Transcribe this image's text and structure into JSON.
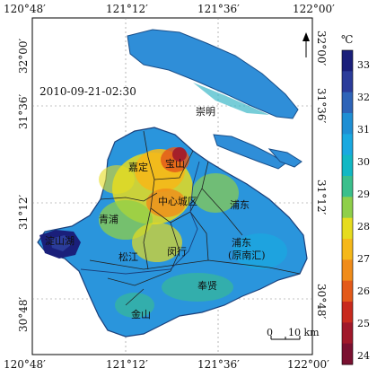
{
  "timestamp": "2010-09-21-02:30",
  "top_ticks": [
    "120°48′",
    "121°12′",
    "121°36′",
    "122°00′"
  ],
  "bottom_ticks": [
    "120°48′",
    "121°12′",
    "121°36′",
    "122°00′"
  ],
  "left_ticks": [
    "32°00′",
    "31°36′",
    "31°12′",
    "30°48′"
  ],
  "right_ticks": [
    "32°00′",
    "31°36′",
    "31°12′",
    "30°48′"
  ],
  "districts": {
    "chongming": "崇明",
    "baoshan": "宝山",
    "jiading": "嘉定",
    "central": "中心城区",
    "pudong": "浦东",
    "qingpu": "青浦",
    "dianshanhu": "淀山湖",
    "songjiang": "松江",
    "minhang": "闵行",
    "pudong_nanhui_1": "浦东",
    "pudong_nanhui_2": "(原南汇)",
    "fengxian": "奉贤",
    "jinshan": "金山"
  },
  "scale": {
    "zero": "0",
    "label": "10 km"
  },
  "colorbar": {
    "unit": "℃",
    "ticks": [
      "33",
      "32",
      "31",
      "30",
      "29",
      "28",
      "27",
      "26",
      "25",
      "24"
    ],
    "colors": [
      "#1a1f7a",
      "#2b3c9a",
      "#2e64b8",
      "#1f8fd4",
      "#1aa9e0",
      "#12b8c4",
      "#3bbf8c",
      "#8fcf4a",
      "#e6dc1f",
      "#f5b81a",
      "#f08c1a",
      "#e35a1a",
      "#c82a1e",
      "#a0182a",
      "#7a1030"
    ]
  }
}
